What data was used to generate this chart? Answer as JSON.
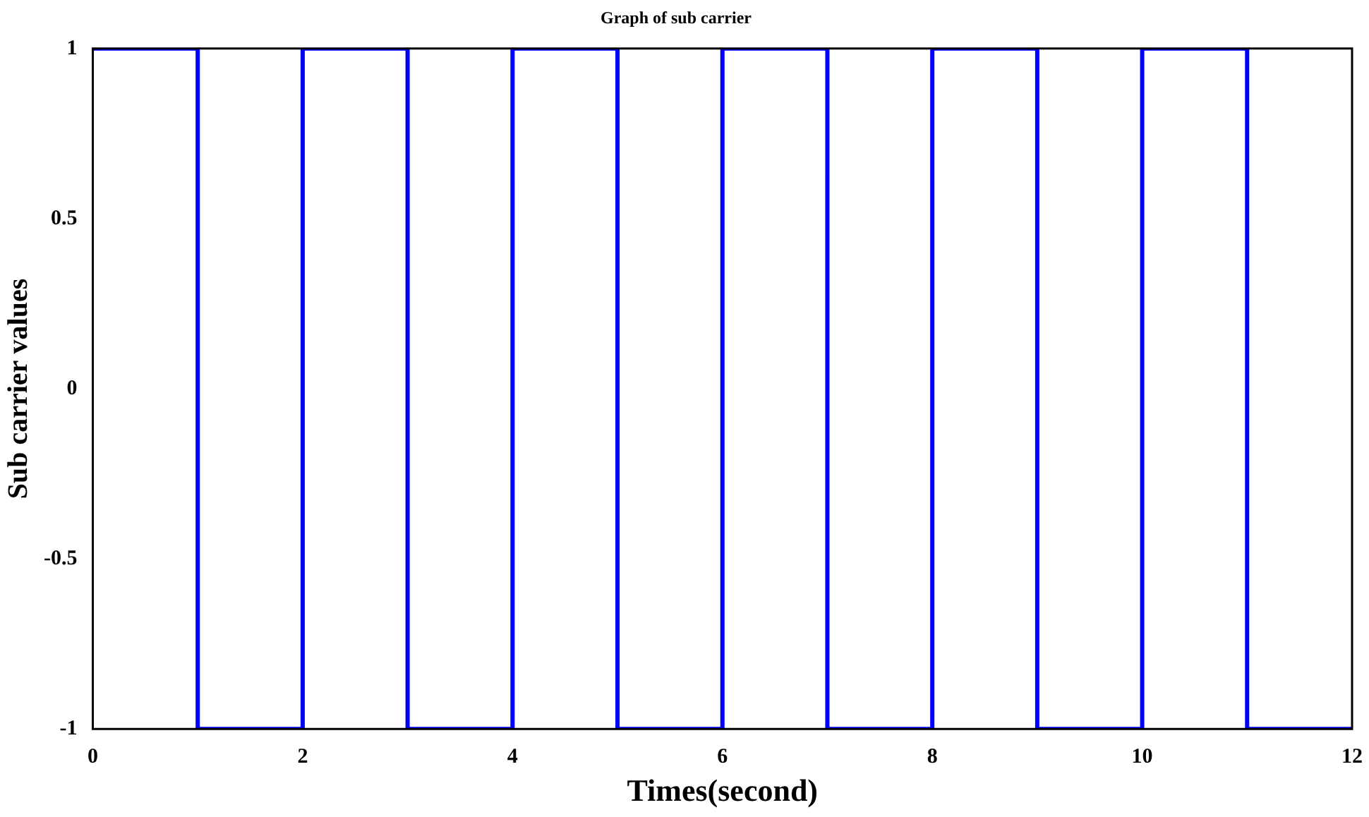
{
  "chart_data": {
    "type": "step",
    "title": "Graph of sub carrier",
    "xlabel": "Times(second)",
    "ylabel": "Sub carrier values",
    "x": [
      0,
      1,
      2,
      3,
      4,
      5,
      6,
      7,
      8,
      9,
      10,
      11,
      12
    ],
    "series": [
      {
        "color": "#0000ff",
        "values": [
          1,
          -1,
          1,
          -1,
          1,
          -1,
          1,
          -1,
          1,
          -1,
          1,
          -1,
          -1
        ]
      }
    ],
    "xlim": [
      0,
      12
    ],
    "xticks": [
      0,
      2,
      4,
      6,
      8,
      10,
      12
    ],
    "ylim": [
      -1,
      1
    ],
    "yticks": [
      -1,
      -0.5,
      0,
      0.5,
      1
    ],
    "grid": false,
    "legend": false,
    "marker": "none",
    "line_style": "solid"
  }
}
